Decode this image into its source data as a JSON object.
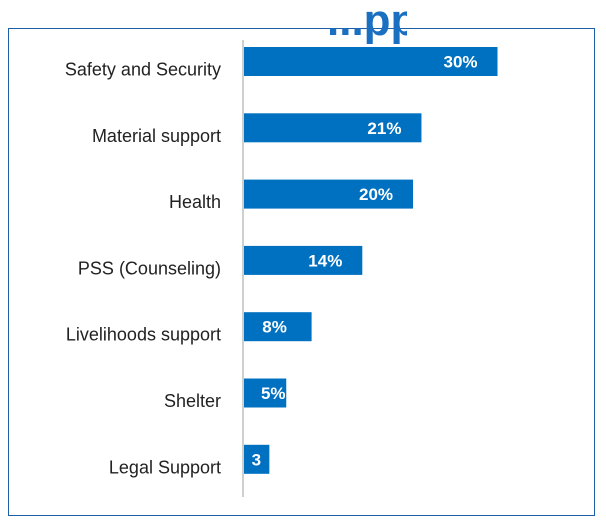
{
  "chart_data": {
    "type": "bar",
    "orientation": "horizontal",
    "title": "...pp...",
    "categories": [
      "Safety and Security",
      "Material support",
      "Health",
      "PSS (Counseling)",
      "Livelihoods support",
      "Shelter",
      "Legal Support"
    ],
    "values": [
      30,
      21,
      20,
      14,
      8,
      5,
      3
    ],
    "data_labels": [
      "30%",
      "21%",
      "20%",
      "14%",
      "8%",
      "5%",
      "3"
    ],
    "xlim": [
      0,
      30
    ],
    "grid": false,
    "legend": "none",
    "colors": {
      "bar": "#0070c0",
      "label_text": "#ffffff",
      "category_text": "#222222",
      "axis": "#bfbfbf",
      "frame": "#1f5fa8",
      "title": "#1a6fc1"
    }
  }
}
